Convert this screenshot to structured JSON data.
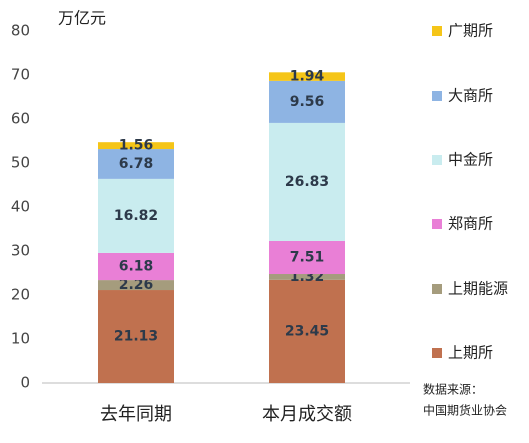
{
  "chart_data": {
    "type": "stacked_bar",
    "y_label": "万亿元",
    "categories": [
      "去年同期",
      "本月成交额"
    ],
    "series": [
      {
        "name": "上期所",
        "color": "#c0714f",
        "values": [
          21.13,
          23.45
        ]
      },
      {
        "name": "上期能源",
        "color": "#a59c7d",
        "values": [
          2.26,
          1.32
        ]
      },
      {
        "name": "郑商所",
        "color": "#e97fd6",
        "values": [
          6.18,
          7.51
        ]
      },
      {
        "name": "中金所",
        "color": "#c9ecef",
        "values": [
          16.82,
          26.83
        ]
      },
      {
        "name": "大商所",
        "color": "#8eb4e3",
        "values": [
          6.78,
          9.56
        ]
      },
      {
        "name": "广期所",
        "color": "#f5c518",
        "values": [
          1.56,
          1.94
        ]
      }
    ],
    "ylim": [
      0,
      80
    ],
    "yticks": [
      0,
      10,
      20,
      30,
      40,
      50,
      60,
      70,
      80
    ],
    "source": [
      "数据来源：",
      "中国期货业协会"
    ]
  }
}
